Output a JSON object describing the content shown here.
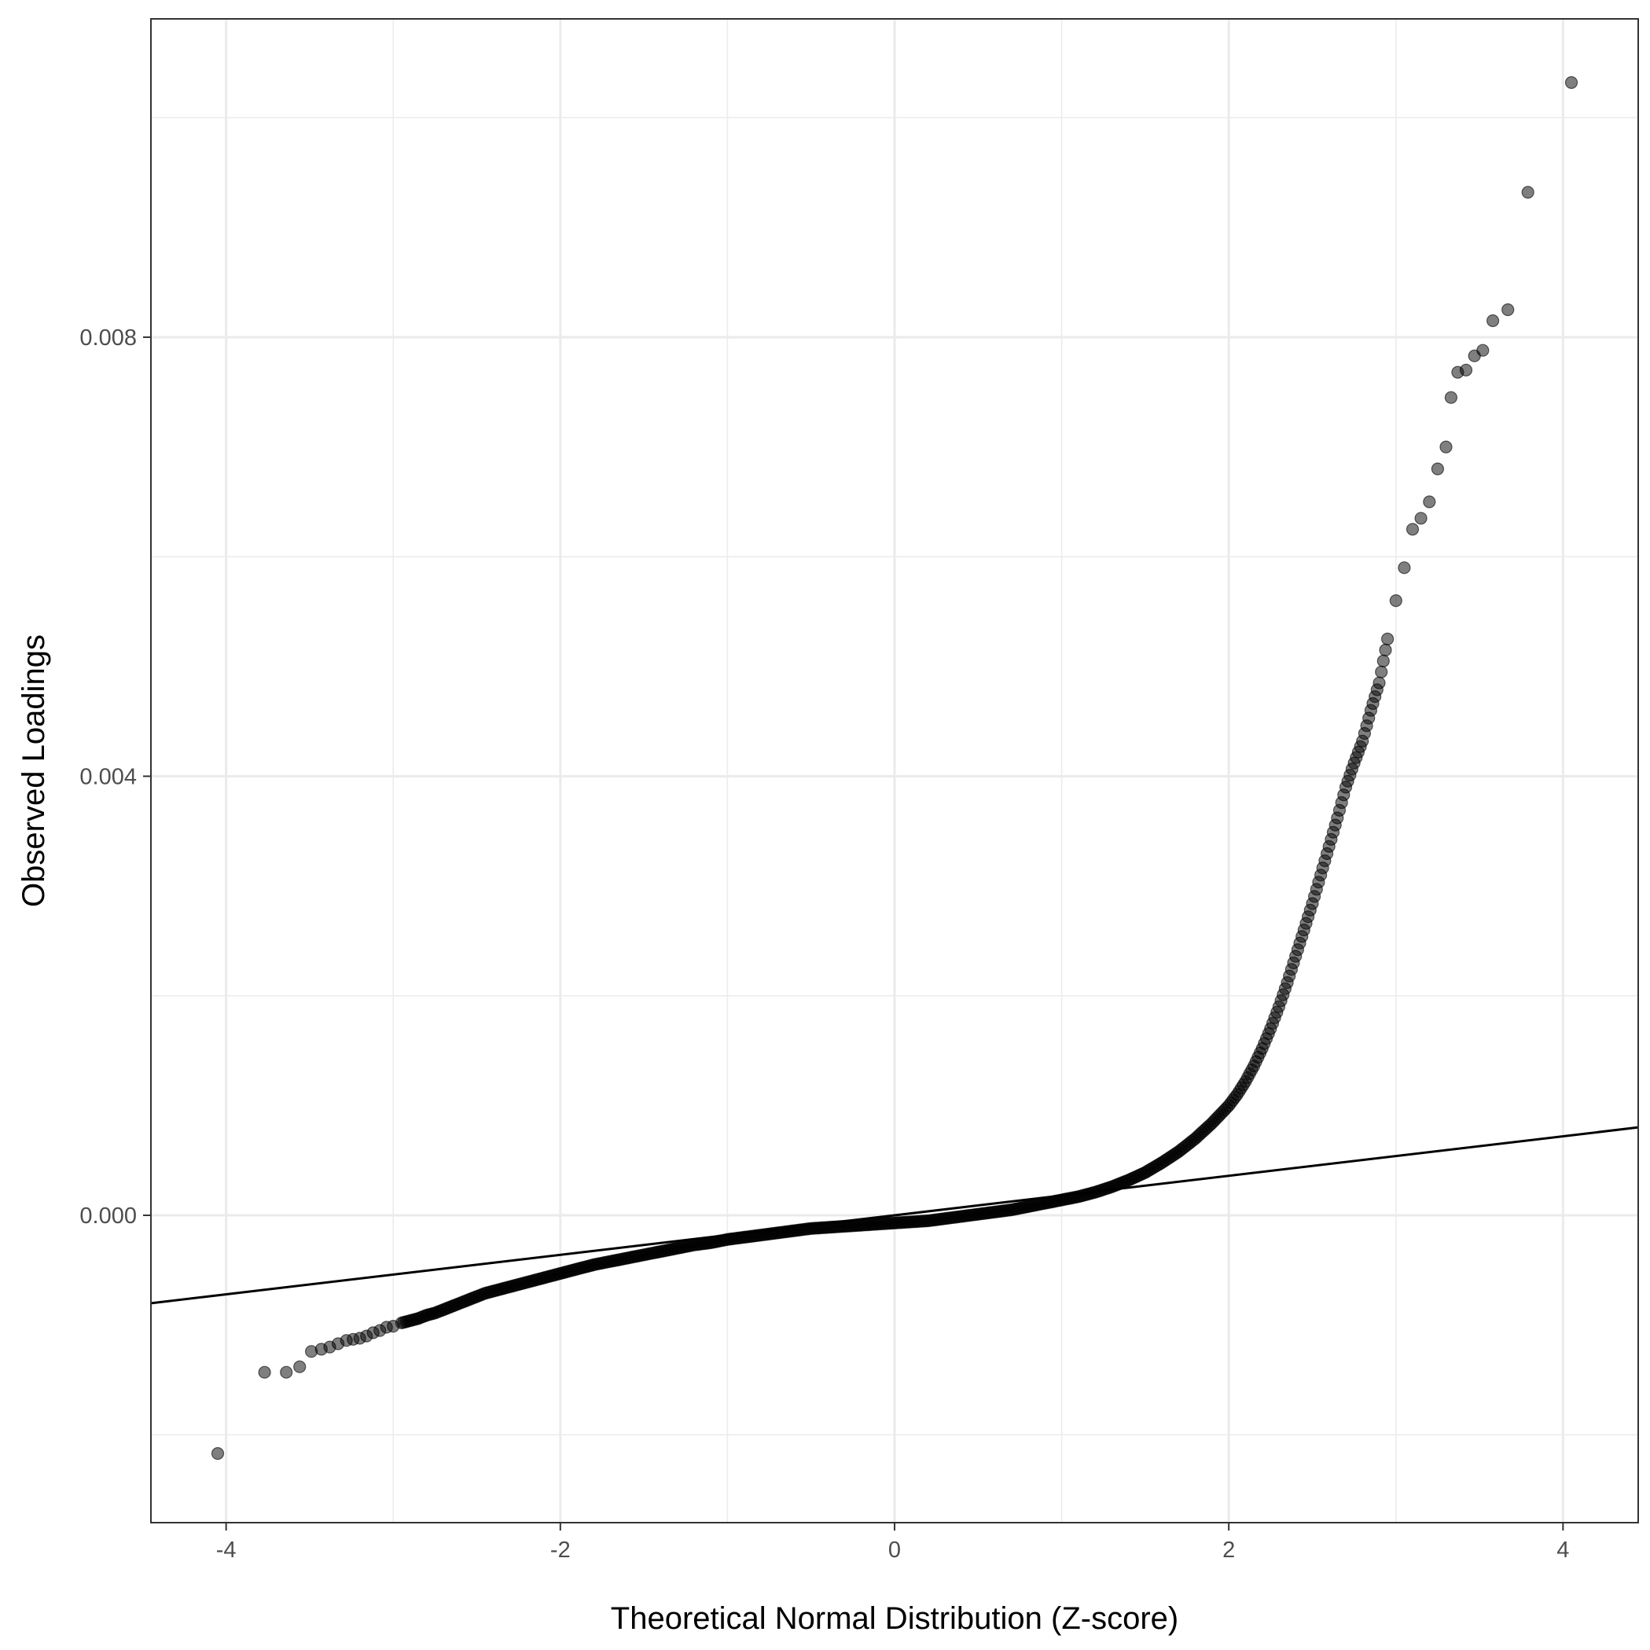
{
  "chart_data": {
    "type": "scatter",
    "xlabel": "Theoretical Normal Distribution (Z-score)",
    "ylabel": "Observed Loadings",
    "xlim": [
      -4.45,
      4.45
    ],
    "ylim": [
      -0.0028,
      0.0109
    ],
    "x_ticks": [
      -4,
      -2,
      0,
      2,
      4
    ],
    "x_tick_labels": [
      "-4",
      "-2",
      "0",
      "2",
      "4"
    ],
    "y_ticks": [
      0.0,
      0.004,
      0.008
    ],
    "y_tick_labels": [
      "0.000",
      "0.004",
      "0.008"
    ],
    "grid": true,
    "legend": "none",
    "colors": {
      "points": "#000000",
      "point_opacity": 0.5,
      "line": "#000000",
      "grid": "#ebebeb",
      "panel_border": "#333333"
    },
    "reference_line": {
      "intercept": 0.0,
      "slope": 0.00018
    },
    "series": [
      {
        "points": [
          [
            -4.05,
            -0.00217
          ],
          [
            -3.77,
            -0.00143
          ],
          [
            -3.64,
            -0.00143
          ],
          [
            -3.56,
            -0.00138
          ],
          [
            -3.49,
            -0.00124
          ],
          [
            -3.43,
            -0.00122
          ],
          [
            -3.38,
            -0.0012
          ],
          [
            -3.33,
            -0.00117
          ],
          [
            -3.28,
            -0.00114
          ],
          [
            -3.24,
            -0.00113
          ],
          [
            -3.2,
            -0.00112
          ],
          [
            -3.16,
            -0.0011
          ],
          [
            -3.12,
            -0.00107
          ],
          [
            -3.08,
            -0.00105
          ],
          [
            -3.04,
            -0.00102
          ],
          [
            -3.0,
            -0.00101
          ],
          [
            -2.95,
            -0.00098
          ],
          [
            -2.9,
            -0.00096
          ],
          [
            -2.85,
            -0.00094
          ],
          [
            -2.8,
            -0.00091
          ],
          [
            -2.75,
            -0.00089
          ],
          [
            -2.7,
            -0.00086
          ],
          [
            -2.65,
            -0.00083
          ],
          [
            -2.6,
            -0.0008
          ],
          [
            -2.55,
            -0.00077
          ],
          [
            -2.5,
            -0.00074
          ],
          [
            -2.45,
            -0.00071
          ],
          [
            -2.4,
            -0.00069
          ],
          [
            -2.35,
            -0.00067
          ],
          [
            -2.3,
            -0.00065
          ],
          [
            -2.25,
            -0.00063
          ],
          [
            -2.2,
            -0.00061
          ],
          [
            -2.15,
            -0.00059
          ],
          [
            -2.1,
            -0.00057
          ],
          [
            -2.05,
            -0.00055
          ],
          [
            -2.0,
            -0.00053
          ],
          [
            -1.9,
            -0.00049
          ],
          [
            -1.8,
            -0.00045
          ],
          [
            -1.7,
            -0.00042
          ],
          [
            -1.6,
            -0.00039
          ],
          [
            -1.5,
            -0.00036
          ],
          [
            -1.4,
            -0.00033
          ],
          [
            -1.3,
            -0.0003
          ],
          [
            -1.2,
            -0.00027
          ],
          [
            -1.1,
            -0.00025
          ],
          [
            -1.0,
            -0.00022
          ],
          [
            -0.9,
            -0.0002
          ],
          [
            -0.8,
            -0.00018
          ],
          [
            -0.7,
            -0.00016
          ],
          [
            -0.6,
            -0.00014
          ],
          [
            -0.5,
            -0.00012
          ],
          [
            -0.4,
            -0.00011
          ],
          [
            -0.3,
            -0.0001
          ],
          [
            -0.2,
            -9e-05
          ],
          [
            -0.1,
            -8e-05
          ],
          [
            0.0,
            -7e-05
          ],
          [
            0.1,
            -6e-05
          ],
          [
            0.2,
            -5e-05
          ],
          [
            0.3,
            -3e-05
          ],
          [
            0.4,
            -1e-05
          ],
          [
            0.5,
            1e-05
          ],
          [
            0.6,
            3e-05
          ],
          [
            0.7,
            5e-05
          ],
          [
            0.8,
            8e-05
          ],
          [
            0.9,
            0.00011
          ],
          [
            1.0,
            0.00014
          ],
          [
            1.1,
            0.00017
          ],
          [
            1.2,
            0.00021
          ],
          [
            1.3,
            0.00026
          ],
          [
            1.4,
            0.00032
          ],
          [
            1.5,
            0.00039
          ],
          [
            1.6,
            0.00048
          ],
          [
            1.7,
            0.00058
          ],
          [
            1.8,
            0.0007
          ],
          [
            1.9,
            0.00084
          ],
          [
            2.0,
            0.001
          ],
          [
            2.05,
            0.0011
          ],
          [
            2.1,
            0.00122
          ],
          [
            2.15,
            0.00136
          ],
          [
            2.2,
            0.00152
          ],
          [
            2.25,
            0.0017
          ],
          [
            2.3,
            0.0019
          ],
          [
            2.35,
            0.00212
          ],
          [
            2.4,
            0.00236
          ],
          [
            2.45,
            0.0026
          ],
          [
            2.5,
            0.00284
          ],
          [
            2.55,
            0.0031
          ],
          [
            2.6,
            0.00336
          ],
          [
            2.65,
            0.00362
          ],
          [
            2.7,
            0.0039
          ],
          [
            2.75,
            0.00412
          ],
          [
            2.8,
            0.00432
          ],
          [
            2.85,
            0.0046
          ],
          [
            2.9,
            0.00485
          ],
          [
            2.95,
            0.00525
          ],
          [
            3.0,
            0.0056
          ],
          [
            3.05,
            0.0059
          ],
          [
            3.1,
            0.00625
          ],
          [
            3.15,
            0.00635
          ],
          [
            3.2,
            0.0065
          ],
          [
            3.25,
            0.0068
          ],
          [
            3.3,
            0.007
          ],
          [
            3.33,
            0.00745
          ],
          [
            3.37,
            0.00768
          ],
          [
            3.42,
            0.0077
          ],
          [
            3.47,
            0.00783
          ],
          [
            3.52,
            0.00788
          ],
          [
            3.58,
            0.00815
          ],
          [
            3.67,
            0.00825
          ],
          [
            3.79,
            0.00932
          ],
          [
            4.05,
            0.01032
          ]
        ]
      }
    ]
  }
}
